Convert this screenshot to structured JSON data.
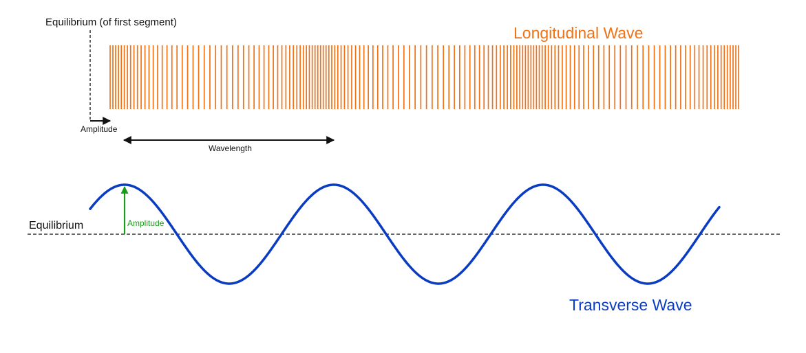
{
  "labels": {
    "equilibrium_first_segment": "Equilibrium (of first segment)",
    "longitudinal_title": "Longitudinal Wave",
    "amplitude_small": "Amplitude",
    "wavelength": "Wavelength",
    "equilibrium": "Equilibrium",
    "amplitude_transverse": "Amplitude",
    "transverse_title": "Transverse Wave"
  },
  "colors": {
    "longitudinal": "#f07318",
    "transverse": "#0a3cc2",
    "amplitude_arrow": "#1a9a1a",
    "annotation": "#111111"
  }
}
